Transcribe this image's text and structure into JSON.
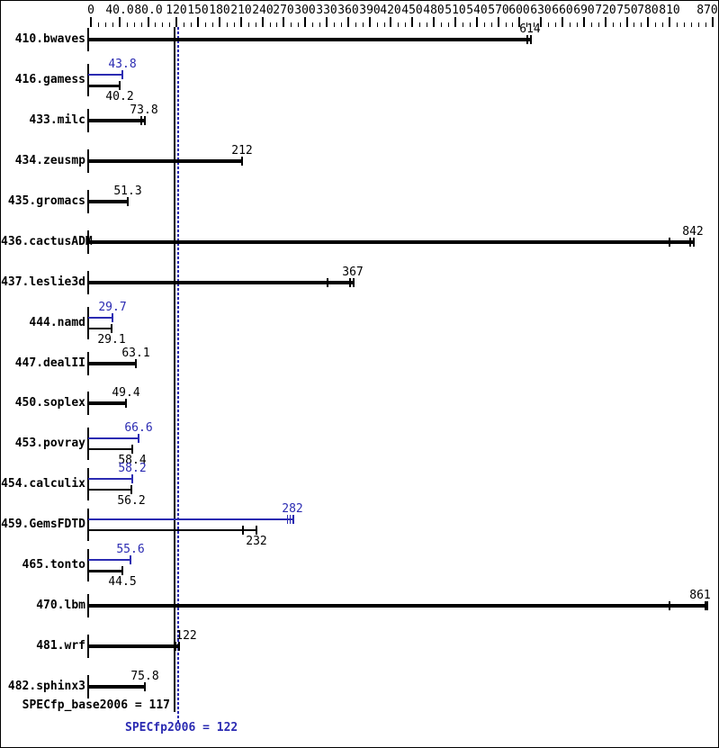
{
  "summary": {
    "base": "SPECfp_base2006 = 117",
    "peak": "SPECfp2006 = 122"
  },
  "colors": {
    "base": "#000000",
    "peak": "#2b2bb2",
    "background": "#ffffff",
    "frame": "#000000"
  },
  "chart_data": {
    "type": "bar",
    "orientation": "horizontal",
    "xlim": [
      0,
      870
    ],
    "grid": false,
    "legend": "none",
    "axis": {
      "minor_step": 10,
      "labeled_ticks": [
        {
          "label": "0",
          "value": 0
        },
        {
          "label": "40.0",
          "value": 40
        },
        {
          "label": "80.0",
          "value": 80
        },
        {
          "label": "120",
          "value": 120
        },
        {
          "label": "150",
          "value": 150
        },
        {
          "label": "180",
          "value": 180
        },
        {
          "label": "210",
          "value": 210
        },
        {
          "label": "240",
          "value": 240
        },
        {
          "label": "270",
          "value": 270
        },
        {
          "label": "300",
          "value": 300
        },
        {
          "label": "330",
          "value": 330
        },
        {
          "label": "360",
          "value": 360
        },
        {
          "label": "390",
          "value": 390
        },
        {
          "label": "420",
          "value": 420
        },
        {
          "label": "450",
          "value": 450
        },
        {
          "label": "480",
          "value": 480
        },
        {
          "label": "510",
          "value": 510
        },
        {
          "label": "540",
          "value": 540
        },
        {
          "label": "570",
          "value": 570
        },
        {
          "label": "600",
          "value": 600
        },
        {
          "label": "630",
          "value": 630
        },
        {
          "label": "660",
          "value": 660
        },
        {
          "label": "690",
          "value": 690
        },
        {
          "label": "720",
          "value": 720
        },
        {
          "label": "750",
          "value": 750
        },
        {
          "label": "780",
          "value": 780
        },
        {
          "label": "810",
          "value": 810
        },
        {
          "label": "870",
          "value": 870,
          "label_dx": -6
        }
      ]
    },
    "reference_lines": [
      {
        "name": "base",
        "value": 117,
        "style": "solid"
      },
      {
        "name": "peak",
        "value": 122,
        "style": "dotted"
      }
    ],
    "rows": [
      {
        "label": "410.bwaves",
        "bars": [
          {
            "series": "base",
            "value": 614,
            "display": "614",
            "weight": "thick",
            "label_side": "above",
            "end_tick": "double"
          }
        ]
      },
      {
        "label": "416.gamess",
        "bars": [
          {
            "series": "peak",
            "value": 43.8,
            "display": "43.8",
            "weight": "thin",
            "label_side": "above",
            "end_tick": "single"
          },
          {
            "series": "base",
            "value": 40.2,
            "display": "40.2",
            "weight": "medium",
            "label_side": "below",
            "end_tick": "single"
          }
        ]
      },
      {
        "label": "433.milc",
        "bars": [
          {
            "series": "base",
            "value": 73.8,
            "display": "73.8",
            "weight": "thick",
            "label_side": "above",
            "end_tick": "double"
          }
        ]
      },
      {
        "label": "434.zeusmp",
        "bars": [
          {
            "series": "base",
            "value": 212,
            "display": "212",
            "weight": "thick",
            "label_side": "above",
            "end_tick": "single"
          }
        ]
      },
      {
        "label": "435.gromacs",
        "bars": [
          {
            "series": "base",
            "value": 51.3,
            "display": "51.3",
            "weight": "thick",
            "label_side": "above",
            "end_tick": "single"
          }
        ]
      },
      {
        "label": "436.cactusADM",
        "bars": [
          {
            "series": "base",
            "value": 842,
            "display": "842",
            "weight": "thick",
            "label_side": "above",
            "end_tick": "double",
            "extra_marks": [
              810
            ]
          }
        ]
      },
      {
        "label": "437.leslie3d",
        "bars": [
          {
            "series": "base",
            "value": 367,
            "display": "367",
            "weight": "thick",
            "label_side": "above",
            "end_tick": "double",
            "extra_marks": [
              331
            ]
          }
        ]
      },
      {
        "label": "444.namd",
        "bars": [
          {
            "series": "peak",
            "value": 29.7,
            "display": "29.7",
            "weight": "thin",
            "label_side": "above",
            "end_tick": "single"
          },
          {
            "series": "base",
            "value": 29.1,
            "display": "29.1",
            "weight": "thin",
            "label_side": "below",
            "end_tick": "single"
          }
        ]
      },
      {
        "label": "447.dealII",
        "bars": [
          {
            "series": "base",
            "value": 63.1,
            "display": "63.1",
            "weight": "thick",
            "label_side": "above",
            "end_tick": "single"
          }
        ]
      },
      {
        "label": "450.soplex",
        "bars": [
          {
            "series": "base",
            "value": 49.4,
            "display": "49.4",
            "weight": "thick",
            "label_side": "above",
            "end_tick": "single"
          }
        ]
      },
      {
        "label": "453.povray",
        "bars": [
          {
            "series": "peak",
            "value": 66.6,
            "display": "66.6",
            "weight": "thin",
            "label_side": "above",
            "end_tick": "single"
          },
          {
            "series": "base",
            "value": 58.4,
            "display": "58.4",
            "weight": "thin",
            "label_side": "below",
            "end_tick": "single"
          }
        ]
      },
      {
        "label": "454.calculix",
        "bars": [
          {
            "series": "peak",
            "value": 58.2,
            "display": "58.2",
            "weight": "thin",
            "label_side": "above",
            "end_tick": "single"
          },
          {
            "series": "base",
            "value": 56.2,
            "display": "56.2",
            "weight": "thin",
            "label_side": "below",
            "end_tick": "single"
          }
        ]
      },
      {
        "label": "459.GemsFDTD",
        "bars": [
          {
            "series": "peak",
            "value": 282,
            "display": "282",
            "weight": "thin",
            "label_side": "above",
            "end_tick": "triple"
          },
          {
            "series": "base",
            "value": 232,
            "display": "232",
            "weight": "thin",
            "label_side": "below",
            "end_tick": "single",
            "extra_marks": [
              213
            ]
          }
        ]
      },
      {
        "label": "465.tonto",
        "bars": [
          {
            "series": "peak",
            "value": 55.6,
            "display": "55.6",
            "weight": "thin",
            "label_side": "above",
            "end_tick": "single"
          },
          {
            "series": "base",
            "value": 44.5,
            "display": "44.5",
            "weight": "medium",
            "label_side": "below",
            "end_tick": "single"
          }
        ]
      },
      {
        "label": "470.lbm",
        "bars": [
          {
            "series": "base",
            "value": 861,
            "display": "861",
            "weight": "thick",
            "label_side": "above",
            "end_tick": "thick",
            "extra_marks": [
              810
            ],
            "label_dx": -7
          }
        ]
      },
      {
        "label": "481.wrf",
        "bars": [
          {
            "series": "base",
            "value": 122,
            "display": "122",
            "weight": "thick",
            "label_side": "above",
            "end_tick": "double",
            "label_dx": 9
          }
        ]
      },
      {
        "label": "482.sphinx3",
        "bars": [
          {
            "series": "base",
            "value": 75.8,
            "display": "75.8",
            "weight": "thick",
            "label_side": "above",
            "end_tick": "single"
          }
        ]
      }
    ]
  }
}
